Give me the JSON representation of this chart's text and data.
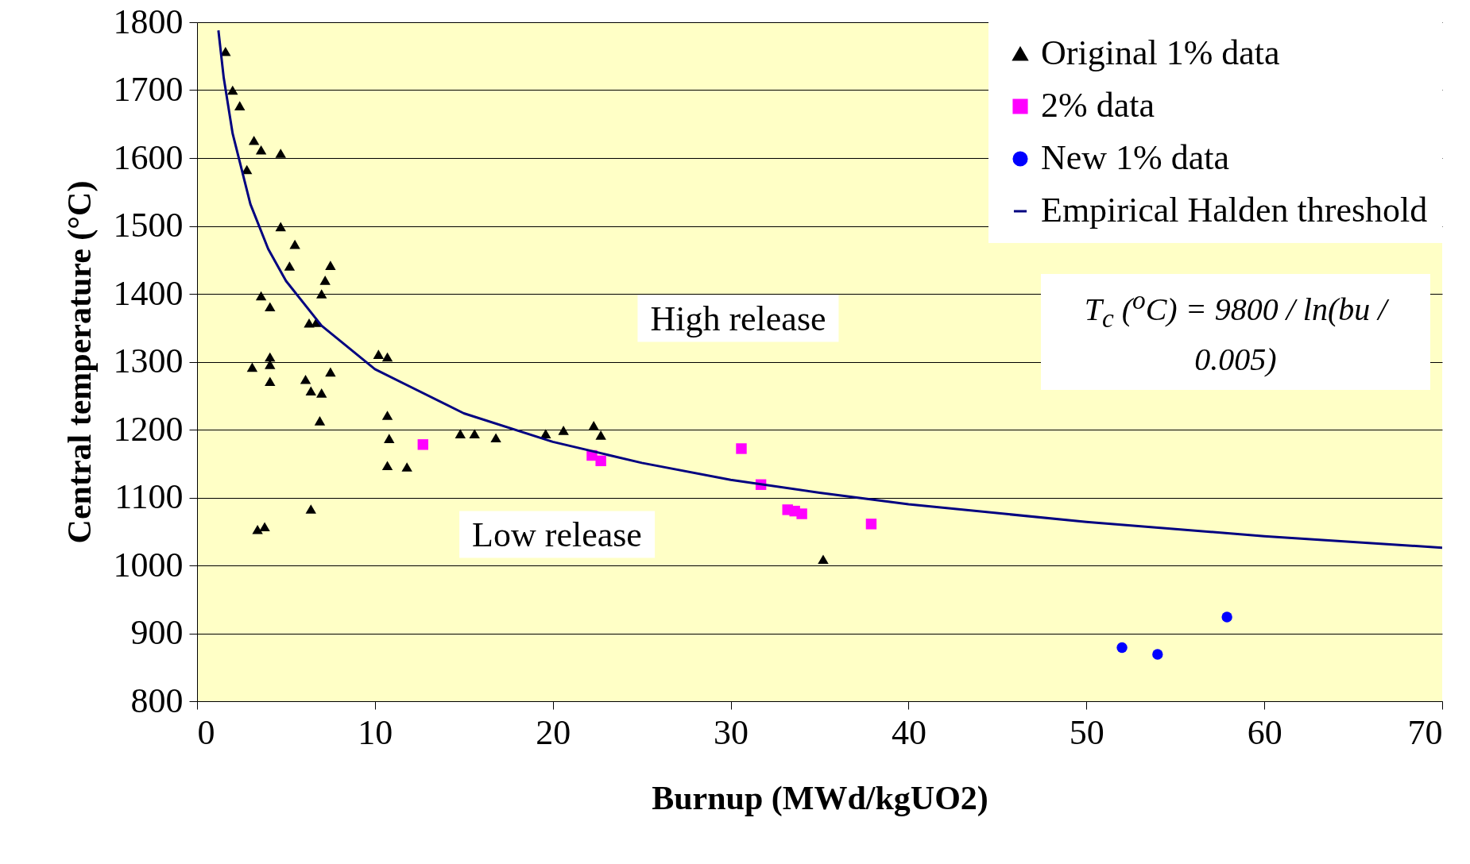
{
  "chart_data": {
    "type": "scatter",
    "xlabel": "Burnup (MWd/kgUO2)",
    "ylabel": "Central temperature (°C)",
    "xlim": [
      0,
      70
    ],
    "xticks": [
      0,
      10,
      20,
      30,
      40,
      50,
      60,
      70
    ],
    "ylim": [
      800,
      1800
    ],
    "yticks": [
      800,
      900,
      1000,
      1100,
      1200,
      1300,
      1400,
      1500,
      1600,
      1700,
      1800
    ],
    "grid": "y",
    "legend": "top right",
    "annotations": [
      "High release",
      "Low release",
      "T$_{c}$ ($^{o}$C) = 9800 / ln(bu / 0.005)"
    ],
    "series": [
      {
        "name": "Original 1% data",
        "marker": "triangle",
        "color": "#000000",
        "x": [
          1.6,
          2.0,
          2.4,
          3.2,
          3.6,
          2.8,
          4.7,
          4.7,
          5.5,
          5.2,
          7.5,
          7.2,
          7.0,
          3.6,
          4.1,
          6.3,
          6.7,
          10.2,
          10.7,
          4.1,
          4.1,
          3.1,
          7.5,
          6.1,
          4.1,
          6.4,
          7.0,
          10.7,
          6.9,
          10.8,
          14.8,
          15.6,
          16.8,
          19.6,
          20.6,
          22.3,
          22.7,
          10.7,
          11.8,
          6.4,
          3.4,
          3.8,
          35.2
        ],
        "values": [
          1757,
          1700,
          1677,
          1626,
          1612,
          1583,
          1607,
          1499,
          1473,
          1441,
          1442,
          1420,
          1400,
          1397,
          1381,
          1357,
          1358,
          1311,
          1307,
          1307,
          1296,
          1292,
          1285,
          1274,
          1271,
          1257,
          1254,
          1221,
          1213,
          1187,
          1194,
          1194,
          1188,
          1194,
          1199,
          1206,
          1192,
          1147,
          1145,
          1083,
          1053,
          1057,
          1009
        ]
      },
      {
        "name": "2% data",
        "marker": "square",
        "color": "#ff00ff",
        "x": [
          12.7,
          30.6,
          22.2,
          22.7,
          31.7,
          33.2,
          33.6,
          34.0,
          37.9
        ],
        "values": [
          1178,
          1172,
          1162,
          1154,
          1119,
          1082,
          1080,
          1076,
          1061
        ]
      },
      {
        "name": "New 1% data",
        "marker": "circle",
        "color": "#0000ff",
        "x": [
          52.0,
          54.0,
          57.9
        ],
        "values": [
          879,
          869,
          924
        ]
      },
      {
        "name": "Empirical Halden threshold",
        "type": "line",
        "marker": "none",
        "line_style": "solid",
        "color": "#000080",
        "x": [
          1.2,
          1.5,
          2,
          3,
          4,
          5,
          7,
          10,
          15,
          20,
          25,
          30,
          35,
          40,
          50,
          60,
          70
        ],
        "values": [
          1788,
          1718,
          1636,
          1532,
          1466,
          1419,
          1353,
          1289,
          1224,
          1182,
          1151,
          1126,
          1107,
          1090,
          1064,
          1043,
          1026
        ]
      }
    ]
  }
}
